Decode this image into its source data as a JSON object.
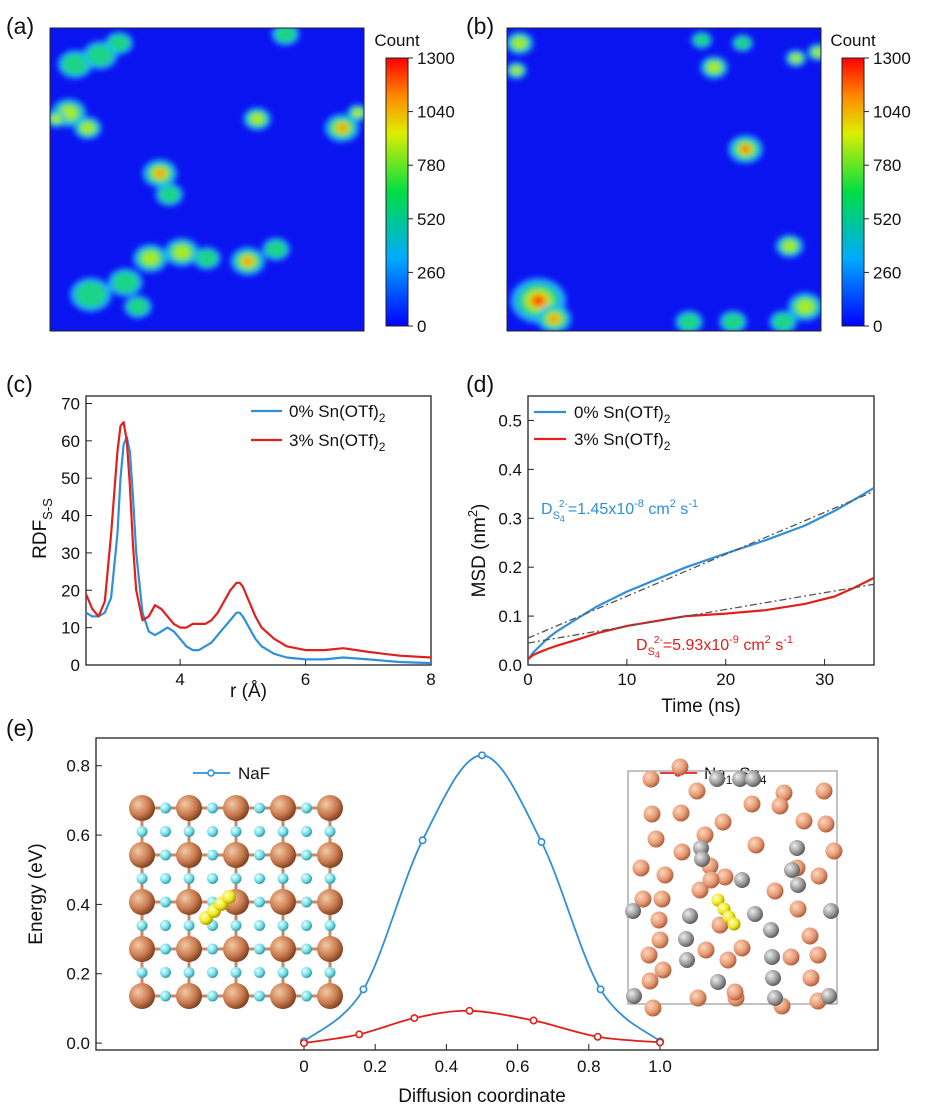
{
  "panels": {
    "a": "(a)",
    "b": "(b)",
    "c": "(c)",
    "d": "(d)",
    "e": "(e)"
  },
  "colors": {
    "blue_line": "#2f8fd8",
    "red_line": "#e0201c",
    "fit": "#555555",
    "heat_bg": "#0a14f0"
  },
  "chart_data": [
    {
      "id": "a",
      "type": "heatmap",
      "colorbar": {
        "title": "Count",
        "min": 0,
        "max": 1300,
        "ticks": [
          "0",
          "260",
          "520",
          "780",
          "1040",
          "1300"
        ]
      },
      "hotspots": [
        {
          "x": 0.08,
          "y": 0.12,
          "r": 0.05,
          "v": 0.55
        },
        {
          "x": 0.16,
          "y": 0.09,
          "r": 0.05,
          "v": 0.45
        },
        {
          "x": 0.22,
          "y": 0.05,
          "r": 0.04,
          "v": 0.45
        },
        {
          "x": 0.06,
          "y": 0.28,
          "r": 0.05,
          "v": 0.65
        },
        {
          "x": 0.12,
          "y": 0.33,
          "r": 0.04,
          "v": 0.6
        },
        {
          "x": 0.02,
          "y": 0.3,
          "r": 0.03,
          "v": 0.7
        },
        {
          "x": 0.35,
          "y": 0.48,
          "r": 0.05,
          "v": 0.85
        },
        {
          "x": 0.38,
          "y": 0.55,
          "r": 0.04,
          "v": 0.55
        },
        {
          "x": 0.66,
          "y": 0.3,
          "r": 0.04,
          "v": 0.7
        },
        {
          "x": 0.93,
          "y": 0.33,
          "r": 0.05,
          "v": 0.8
        },
        {
          "x": 0.75,
          "y": 0.02,
          "r": 0.04,
          "v": 0.5
        },
        {
          "x": 0.98,
          "y": 0.28,
          "r": 0.03,
          "v": 0.6
        },
        {
          "x": 0.13,
          "y": 0.88,
          "r": 0.06,
          "v": 0.55
        },
        {
          "x": 0.24,
          "y": 0.84,
          "r": 0.05,
          "v": 0.5
        },
        {
          "x": 0.32,
          "y": 0.76,
          "r": 0.05,
          "v": 0.7
        },
        {
          "x": 0.42,
          "y": 0.74,
          "r": 0.05,
          "v": 0.65
        },
        {
          "x": 0.28,
          "y": 0.92,
          "r": 0.04,
          "v": 0.5
        },
        {
          "x": 0.63,
          "y": 0.77,
          "r": 0.05,
          "v": 0.85
        },
        {
          "x": 0.72,
          "y": 0.73,
          "r": 0.04,
          "v": 0.45
        },
        {
          "x": 0.5,
          "y": 0.76,
          "r": 0.04,
          "v": 0.55
        }
      ]
    },
    {
      "id": "b",
      "type": "heatmap",
      "colorbar": {
        "title": "Count",
        "min": 0,
        "max": 1300,
        "ticks": [
          "0",
          "260",
          "520",
          "780",
          "1040",
          "1300"
        ]
      },
      "hotspots": [
        {
          "x": 0.04,
          "y": 0.05,
          "r": 0.04,
          "v": 0.75
        },
        {
          "x": 0.03,
          "y": 0.14,
          "r": 0.03,
          "v": 0.6
        },
        {
          "x": 0.62,
          "y": 0.04,
          "r": 0.03,
          "v": 0.45
        },
        {
          "x": 0.66,
          "y": 0.13,
          "r": 0.04,
          "v": 0.7
        },
        {
          "x": 0.75,
          "y": 0.05,
          "r": 0.03,
          "v": 0.55
        },
        {
          "x": 0.92,
          "y": 0.1,
          "r": 0.03,
          "v": 0.6
        },
        {
          "x": 0.99,
          "y": 0.08,
          "r": 0.03,
          "v": 0.6
        },
        {
          "x": 0.76,
          "y": 0.4,
          "r": 0.05,
          "v": 1.0
        },
        {
          "x": 0.9,
          "y": 0.72,
          "r": 0.04,
          "v": 0.75
        },
        {
          "x": 0.1,
          "y": 0.9,
          "r": 0.08,
          "v": 0.95
        },
        {
          "x": 0.15,
          "y": 0.96,
          "r": 0.05,
          "v": 0.85
        },
        {
          "x": 0.58,
          "y": 0.97,
          "r": 0.04,
          "v": 0.5
        },
        {
          "x": 0.72,
          "y": 0.97,
          "r": 0.04,
          "v": 0.55
        },
        {
          "x": 0.95,
          "y": 0.92,
          "r": 0.05,
          "v": 0.7
        },
        {
          "x": 0.88,
          "y": 0.97,
          "r": 0.04,
          "v": 0.55
        }
      ]
    },
    {
      "id": "c",
      "type": "line",
      "xlabel": "r (Å)",
      "ylabel": "RDF",
      "ylabel_sub": "S-S",
      "xlim": [
        2.5,
        8
      ],
      "ylim": [
        0,
        72
      ],
      "xticks": [
        4,
        6,
        8
      ],
      "yticks": [
        0,
        10,
        20,
        30,
        40,
        50,
        60,
        70
      ],
      "series": [
        {
          "name": "0% Sn(OTf)",
          "name_sub": "2",
          "color": "#2f8fd8",
          "x": [
            2.5,
            2.6,
            2.7,
            2.8,
            2.9,
            3.0,
            3.05,
            3.1,
            3.15,
            3.2,
            3.25,
            3.3,
            3.4,
            3.5,
            3.6,
            3.7,
            3.8,
            3.9,
            4.0,
            4.1,
            4.2,
            4.3,
            4.4,
            4.5,
            4.6,
            4.7,
            4.8,
            4.9,
            4.95,
            5.0,
            5.1,
            5.2,
            5.3,
            5.5,
            5.7,
            6.0,
            6.3,
            6.6,
            7.0,
            7.5,
            8.0
          ],
          "y": [
            14,
            13,
            13,
            14,
            18,
            35,
            50,
            59,
            61,
            57,
            45,
            30,
            14,
            9,
            8,
            9,
            10,
            9,
            7,
            5,
            4,
            4,
            5,
            6,
            8,
            10,
            12,
            14,
            14,
            13,
            10,
            7,
            5,
            3,
            2,
            1.5,
            1.5,
            2,
            1.5,
            0.8,
            0.5
          ]
        },
        {
          "name": "3% Sn(OTf)",
          "name_sub": "2",
          "color": "#e0201c",
          "x": [
            2.5,
            2.6,
            2.7,
            2.8,
            2.9,
            3.0,
            3.05,
            3.1,
            3.15,
            3.2,
            3.25,
            3.3,
            3.4,
            3.5,
            3.6,
            3.7,
            3.8,
            3.9,
            4.0,
            4.1,
            4.2,
            4.3,
            4.4,
            4.5,
            4.6,
            4.7,
            4.8,
            4.9,
            4.95,
            5.0,
            5.1,
            5.2,
            5.3,
            5.5,
            5.7,
            6.0,
            6.3,
            6.6,
            7.0,
            7.5,
            8.0
          ],
          "y": [
            19,
            15,
            13,
            17,
            35,
            57,
            64,
            65,
            60,
            48,
            32,
            20,
            12,
            13,
            16,
            15,
            13,
            11,
            10,
            10,
            11,
            11,
            11,
            12,
            14,
            17,
            20,
            22,
            22,
            21,
            17,
            13,
            10,
            7,
            5,
            4,
            4,
            4.5,
            3.5,
            2.5,
            2
          ]
        }
      ],
      "legend": "top-right"
    },
    {
      "id": "d",
      "type": "line",
      "xlabel": "Time (ns)",
      "ylabel": "MSD (nm",
      "ylabel_sup": "2",
      "ylabel_end": ")",
      "xlim": [
        0,
        35
      ],
      "ylim": [
        0,
        0.55
      ],
      "xticks": [
        0,
        10,
        20,
        30
      ],
      "yticks": [
        0.0,
        0.1,
        0.2,
        0.3,
        0.4,
        0.5
      ],
      "series": [
        {
          "name": "0% Sn(OTf)",
          "name_sub": "2",
          "color": "#2f8fd8",
          "x": [
            0,
            0.5,
            1,
            2,
            3,
            5,
            7,
            10,
            13,
            16,
            20,
            24,
            28,
            31,
            33,
            35
          ],
          "y": [
            0.01,
            0.025,
            0.035,
            0.055,
            0.07,
            0.095,
            0.12,
            0.15,
            0.175,
            0.2,
            0.228,
            0.255,
            0.285,
            0.315,
            0.338,
            0.362
          ]
        },
        {
          "name": "3% Sn(OTf)",
          "name_sub": "2",
          "color": "#e0201c",
          "x": [
            0,
            0.5,
            1,
            2,
            3,
            5,
            7,
            10,
            13,
            16,
            20,
            24,
            28,
            31,
            33,
            35
          ],
          "y": [
            0.012,
            0.02,
            0.025,
            0.033,
            0.04,
            0.052,
            0.065,
            0.08,
            0.09,
            0.1,
            0.105,
            0.112,
            0.125,
            0.14,
            0.158,
            0.178
          ]
        },
        {
          "name": "",
          "color": "#555555",
          "dash": true,
          "x": [
            0,
            35
          ],
          "y": [
            0.055,
            0.355
          ]
        },
        {
          "name": "",
          "color": "#555555",
          "dash": true,
          "x": [
            0,
            35
          ],
          "y": [
            0.045,
            0.165
          ]
        }
      ],
      "legend": "top-left",
      "annotations": [
        {
          "pre": "D",
          "sub": "S",
          "subsub": "4",
          "sup": "2-",
          "eq": "=1.45x10",
          "exp": "-8",
          "unit": " cm",
          "unit_sup": "2",
          "tail": " s",
          "tail_sup": "-1",
          "color": "#2f8fd8"
        },
        {
          "pre": "D",
          "sub": "S",
          "subsub": "4",
          "sup": "2-",
          "eq": "=5.93x10",
          "exp": "-9",
          "unit": " cm",
          "unit_sup": "2",
          "tail": " s",
          "tail_sup": "-1",
          "color": "#e0201c"
        }
      ]
    },
    {
      "id": "e",
      "type": "line",
      "xlabel": "Diffusion coordinate",
      "ylabel": "Energy (eV)",
      "xlim": [
        0,
        1
      ],
      "ylim": [
        -0.02,
        0.88
      ],
      "xticks": [
        "0",
        "0.2",
        "0.4",
        "0.6",
        "0.8",
        "1.0"
      ],
      "yticks": [
        "0.0",
        "0.2",
        "0.4",
        "0.6",
        "0.8"
      ],
      "series": [
        {
          "name": "NaF",
          "color": "#2f8fd8",
          "points_x": [
            0,
            0.167,
            0.333,
            0.5,
            0.667,
            0.833,
            1.0
          ],
          "points_y": [
            0.005,
            0.155,
            0.585,
            0.83,
            0.58,
            0.155,
            0.005
          ]
        },
        {
          "name_pre": "Na",
          "name_sub1": "15",
          "name_mid": "Sn",
          "name_sub2": "4",
          "color": "#e0201c",
          "points_x": [
            0,
            0.155,
            0.31,
            0.465,
            0.645,
            0.825,
            1.0
          ],
          "points_y": [
            0.0,
            0.025,
            0.072,
            0.093,
            0.065,
            0.018,
            0.002
          ]
        }
      ]
    }
  ]
}
